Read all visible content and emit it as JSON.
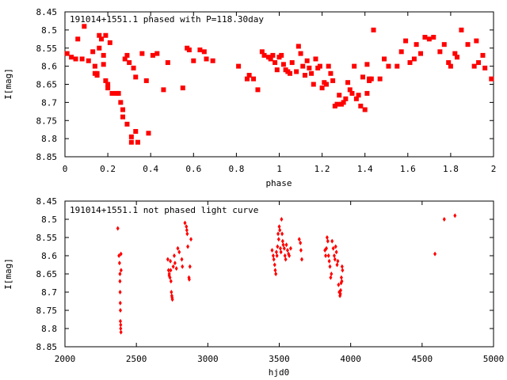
{
  "chart_data": [
    {
      "type": "scatter",
      "title": "191014+1551.1 phased with P=118.30day",
      "xlabel": "phase",
      "ylabel": "I[mag]",
      "xlim": [
        0,
        2
      ],
      "ylim": [
        8.45,
        8.85
      ],
      "y_inverted": true,
      "xticks": [
        "0",
        "0.2",
        "0.4",
        "0.6",
        "0.8",
        "1",
        "1.2",
        "1.4",
        "1.6",
        "1.8",
        "2"
      ],
      "xtick_values": [
        0,
        0.2,
        0.4,
        0.6,
        0.8,
        1.0,
        1.2,
        1.4,
        1.6,
        1.8,
        2.0
      ],
      "yticks": [
        "8.45",
        "8.5",
        "8.55",
        "8.6",
        "8.65",
        "8.7",
        "8.75",
        "8.8",
        "8.85"
      ],
      "ytick_values": [
        8.45,
        8.5,
        8.55,
        8.6,
        8.65,
        8.7,
        8.75,
        8.8,
        8.85
      ],
      "marker_color": "#ff0000",
      "series": [
        {
          "x": [
            0.01,
            0.03,
            0.05,
            0.06,
            0.08,
            0.09,
            0.11,
            0.13,
            0.14,
            0.14,
            0.15,
            0.15,
            0.16,
            0.16,
            0.17,
            0.18,
            0.18,
            0.19,
            0.19,
            0.2,
            0.2,
            0.21,
            0.22,
            0.24,
            0.25,
            0.26,
            0.27,
            0.27,
            0.28,
            0.29,
            0.29,
            0.3,
            0.31,
            0.31,
            0.32,
            0.33,
            0.33,
            0.34,
            0.36,
            0.38,
            0.39,
            0.41,
            0.43,
            0.46,
            0.48,
            0.55,
            0.57,
            0.58,
            0.6,
            0.63,
            0.65,
            0.66,
            0.69,
            0.81,
            0.85,
            0.86,
            0.88,
            0.9,
            0.92,
            0.93,
            0.95,
            0.96,
            0.97,
            0.98,
            0.99,
            1.0,
            1.01,
            1.02,
            1.03,
            1.04,
            1.05,
            1.06,
            1.08,
            1.09,
            1.1,
            1.11,
            1.12,
            1.13,
            1.14,
            1.15,
            1.16,
            1.17,
            1.18,
            1.19,
            1.2,
            1.21,
            1.22,
            1.23,
            1.24,
            1.25,
            1.26,
            1.27,
            1.28,
            1.29,
            1.3,
            1.31,
            1.32,
            1.33,
            1.34,
            1.35,
            1.36,
            1.37,
            1.38,
            1.39,
            1.4,
            1.41,
            1.41,
            1.42,
            1.42,
            1.43,
            1.44,
            1.47,
            1.49,
            1.51,
            1.55,
            1.57,
            1.59,
            1.61,
            1.63,
            1.64,
            1.66,
            1.68,
            1.7,
            1.72,
            1.75,
            1.77,
            1.79,
            1.8,
            1.82,
            1.83,
            1.85,
            1.88,
            1.91,
            1.92,
            1.93,
            1.95,
            1.96,
            1.99
          ],
          "y": [
            8.565,
            8.575,
            8.58,
            8.525,
            8.58,
            8.49,
            8.585,
            8.56,
            8.6,
            8.62,
            8.625,
            8.62,
            8.515,
            8.55,
            8.525,
            8.595,
            8.57,
            8.64,
            8.515,
            8.65,
            8.66,
            8.535,
            8.675,
            8.675,
            8.675,
            8.7,
            8.72,
            8.74,
            8.58,
            8.57,
            8.76,
            8.59,
            8.795,
            8.81,
            8.605,
            8.63,
            8.78,
            8.81,
            8.565,
            8.64,
            8.785,
            8.57,
            8.565,
            8.665,
            8.59,
            8.66,
            8.55,
            8.555,
            8.585,
            8.555,
            8.56,
            8.58,
            8.585,
            8.6,
            8.635,
            8.625,
            8.635,
            8.665,
            8.56,
            8.57,
            8.575,
            8.58,
            8.57,
            8.59,
            8.61,
            8.575,
            8.57,
            8.595,
            8.61,
            8.615,
            8.62,
            8.59,
            8.615,
            8.545,
            8.565,
            8.6,
            8.625,
            8.585,
            8.605,
            8.62,
            8.65,
            8.58,
            8.605,
            8.6,
            8.66,
            8.645,
            8.65,
            8.6,
            8.62,
            8.64,
            8.71,
            8.705,
            8.68,
            8.705,
            8.7,
            8.69,
            8.645,
            8.665,
            8.675,
            8.6,
            8.69,
            8.68,
            8.71,
            8.63,
            8.72,
            8.595,
            8.675,
            8.635,
            8.64,
            8.635,
            8.5,
            8.635,
            8.58,
            8.6,
            8.6,
            8.56,
            8.53,
            8.59,
            8.58,
            8.54,
            8.565,
            8.52,
            8.525,
            8.52,
            8.56,
            8.54,
            8.59,
            8.6,
            8.565,
            8.575,
            8.5,
            8.54,
            8.6,
            8.53,
            8.59,
            8.57,
            8.605,
            8.635
          ]
        }
      ]
    },
    {
      "type": "scatter",
      "title": "191014+1551.1 not phased light curve",
      "xlabel": "hjd0",
      "ylabel": "I[mag]",
      "xlim": [
        2000,
        5000
      ],
      "ylim": [
        8.45,
        8.85
      ],
      "y_inverted": true,
      "xticks": [
        "2000",
        "2500",
        "3000",
        "3500",
        "4000",
        "4500",
        "5000"
      ],
      "xtick_values": [
        2000,
        2500,
        3000,
        3500,
        4000,
        4500,
        5000
      ],
      "yticks": [
        "8.45",
        "8.5",
        "8.55",
        "8.6",
        "8.65",
        "8.7",
        "8.75",
        "8.8",
        "8.85"
      ],
      "ytick_values": [
        8.45,
        8.5,
        8.55,
        8.6,
        8.65,
        8.7,
        8.75,
        8.8,
        8.85
      ],
      "marker_color": "#ff0000",
      "series": [
        {
          "x": [
            2370,
            2378,
            2382,
            2385,
            2385,
            2386,
            2387,
            2388,
            2388,
            2390,
            2390,
            2392,
            2392,
            2393,
            2720,
            2725,
            2730,
            2730,
            2735,
            2738,
            2740,
            2742,
            2745,
            2748,
            2750,
            2752,
            2758,
            2765,
            2770,
            2780,
            2790,
            2800,
            2818,
            2822,
            2840,
            2850,
            2853,
            2856,
            2860,
            2868,
            2870,
            2875,
            2882,
            3450,
            3458,
            3462,
            3468,
            3472,
            3476,
            3480,
            3484,
            3488,
            3492,
            3496,
            3500,
            3504,
            3508,
            3512,
            3516,
            3520,
            3524,
            3528,
            3535,
            3540,
            3545,
            3550,
            3558,
            3565,
            3570,
            3580,
            3640,
            3648,
            3652,
            3658,
            3820,
            3825,
            3830,
            3835,
            3840,
            3845,
            3850,
            3855,
            3860,
            3865,
            3870,
            3878,
            3885,
            3890,
            3895,
            3900,
            3905,
            3910,
            3915,
            3920,
            3925,
            3928,
            3930,
            3933,
            3935,
            3938,
            3940,
            3943,
            4590,
            4655,
            4730
          ],
          "y": [
            8.525,
            8.6,
            8.62,
            8.65,
            8.67,
            8.7,
            8.73,
            8.75,
            8.78,
            8.79,
            8.8,
            8.81,
            8.595,
            8.64,
            8.61,
            8.64,
            8.65,
            8.655,
            8.66,
            8.615,
            8.64,
            8.67,
            8.7,
            8.71,
            8.715,
            8.72,
            8.63,
            8.6,
            8.62,
            8.635,
            8.58,
            8.59,
            8.61,
            8.63,
            8.51,
            8.52,
            8.53,
            8.54,
            8.575,
            8.66,
            8.665,
            8.63,
            8.555,
            8.585,
            8.6,
            8.61,
            8.625,
            8.64,
            8.65,
            8.59,
            8.6,
            8.575,
            8.54,
            8.555,
            8.52,
            8.53,
            8.58,
            8.59,
            8.5,
            8.54,
            8.56,
            8.57,
            8.58,
            8.6,
            8.61,
            8.57,
            8.585,
            8.595,
            8.6,
            8.58,
            8.555,
            8.565,
            8.585,
            8.61,
            8.585,
            8.6,
            8.58,
            8.55,
            8.56,
            8.6,
            8.615,
            8.63,
            8.66,
            8.65,
            8.56,
            8.58,
            8.6,
            8.61,
            8.575,
            8.59,
            8.625,
            8.615,
            8.68,
            8.7,
            8.71,
            8.705,
            8.695,
            8.675,
            8.66,
            8.67,
            8.63,
            8.64,
            8.595,
            8.5,
            8.49
          ]
        }
      ]
    }
  ]
}
